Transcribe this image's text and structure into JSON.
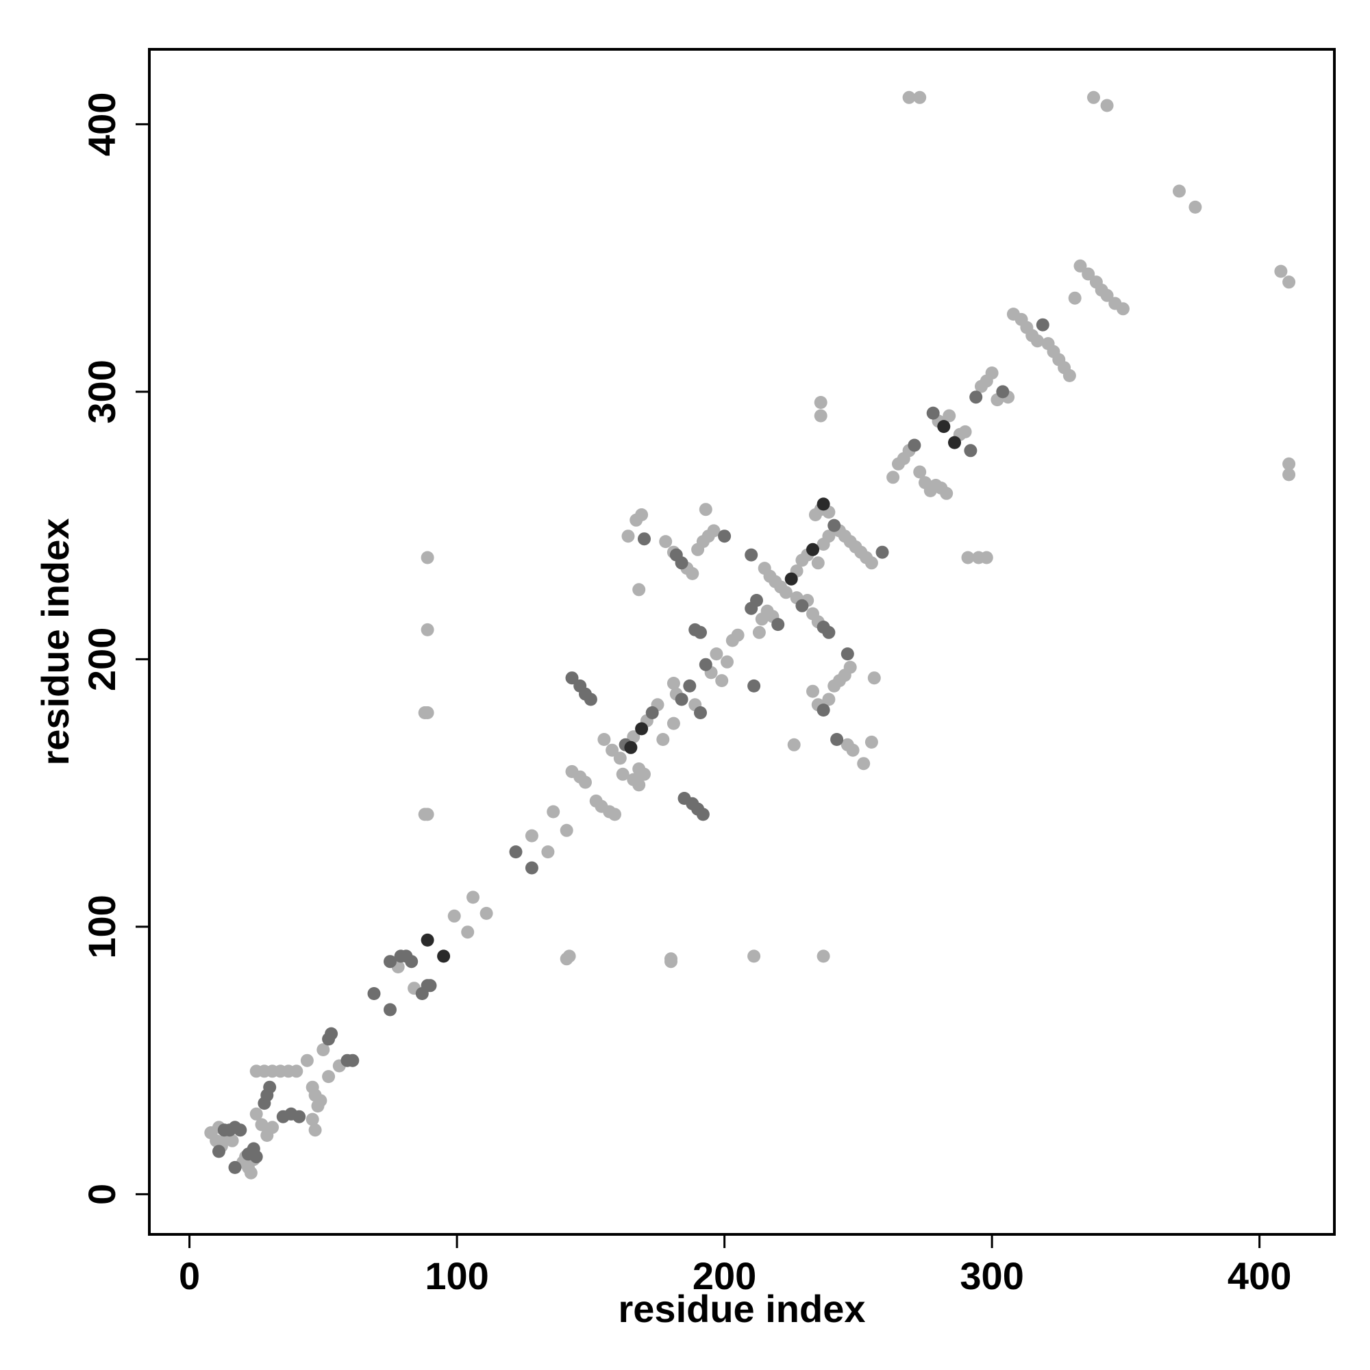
{
  "chart_data": {
    "type": "scatter",
    "title": "",
    "xlabel": "residue index",
    "ylabel": "residue index",
    "xlim": [
      -15,
      428
    ],
    "ylim": [
      -15,
      428
    ],
    "x_ticks": [
      0,
      100,
      200,
      300,
      400
    ],
    "y_ticks": [
      0,
      100,
      200,
      300,
      400
    ],
    "x_tick_labels": [
      "0",
      "100",
      "200",
      "300",
      "400"
    ],
    "y_tick_labels": [
      "0",
      "100",
      "200",
      "300",
      "400"
    ],
    "grid": false,
    "legend": "none",
    "colors": {
      "light": "#b0b0b0",
      "medium": "#6e6e6e",
      "dark": "#2a2a2a"
    },
    "points": [
      [
        8,
        23,
        "light"
      ],
      [
        10,
        20,
        "light"
      ],
      [
        12,
        18,
        "light"
      ],
      [
        11,
        25,
        "light"
      ],
      [
        14,
        22,
        "light"
      ],
      [
        16,
        20,
        "light"
      ],
      [
        13,
        24,
        "medium"
      ],
      [
        15,
        24,
        "medium"
      ],
      [
        17,
        25,
        "medium"
      ],
      [
        19,
        24,
        "medium"
      ],
      [
        11,
        16,
        "medium"
      ],
      [
        17,
        10,
        "medium"
      ],
      [
        20,
        12,
        "light"
      ],
      [
        21,
        14,
        "light"
      ],
      [
        22,
        10,
        "light"
      ],
      [
        23,
        8,
        "light"
      ],
      [
        24,
        13,
        "light"
      ],
      [
        22,
        15,
        "medium"
      ],
      [
        24,
        17,
        "medium"
      ],
      [
        25,
        14,
        "medium"
      ],
      [
        25,
        30,
        "light"
      ],
      [
        27,
        26,
        "light"
      ],
      [
        29,
        22,
        "light"
      ],
      [
        31,
        25,
        "light"
      ],
      [
        28,
        34,
        "medium"
      ],
      [
        29,
        37,
        "medium"
      ],
      [
        30,
        40,
        "medium"
      ],
      [
        25,
        46,
        "light"
      ],
      [
        28,
        46,
        "light"
      ],
      [
        31,
        46,
        "light"
      ],
      [
        34,
        46,
        "light"
      ],
      [
        37,
        46,
        "light"
      ],
      [
        40,
        46,
        "light"
      ],
      [
        35,
        29,
        "medium"
      ],
      [
        38,
        30,
        "medium"
      ],
      [
        41,
        29,
        "medium"
      ],
      [
        44,
        50,
        "light"
      ],
      [
        46,
        40,
        "light"
      ],
      [
        47,
        37,
        "light"
      ],
      [
        48,
        33,
        "light"
      ],
      [
        46,
        28,
        "light"
      ],
      [
        47,
        24,
        "light"
      ],
      [
        49,
        35,
        "light"
      ],
      [
        50,
        54,
        "light"
      ],
      [
        52,
        58,
        "medium"
      ],
      [
        53,
        60,
        "medium"
      ],
      [
        52,
        44,
        "light"
      ],
      [
        56,
        48,
        "light"
      ],
      [
        59,
        50,
        "medium"
      ],
      [
        61,
        50,
        "medium"
      ],
      [
        69,
        75,
        "medium"
      ],
      [
        75,
        69,
        "medium"
      ],
      [
        75,
        87,
        "medium"
      ],
      [
        78,
        85,
        "light"
      ],
      [
        79,
        89,
        "medium"
      ],
      [
        81,
        89,
        "medium"
      ],
      [
        83,
        87,
        "medium"
      ],
      [
        84,
        77,
        "light"
      ],
      [
        87,
        75,
        "medium"
      ],
      [
        89,
        78,
        "medium"
      ],
      [
        90,
        78,
        "medium"
      ],
      [
        89,
        95,
        "dark"
      ],
      [
        95,
        89,
        "dark"
      ],
      [
        99,
        104,
        "light"
      ],
      [
        104,
        98,
        "light"
      ],
      [
        106,
        111,
        "light"
      ],
      [
        111,
        105,
        "light"
      ],
      [
        122,
        128,
        "medium"
      ],
      [
        128,
        122,
        "medium"
      ],
      [
        128,
        134,
        "light"
      ],
      [
        134,
        128,
        "light"
      ],
      [
        136,
        143,
        "light"
      ],
      [
        141,
        136,
        "light"
      ],
      [
        141,
        88,
        "light"
      ],
      [
        142,
        89,
        "light"
      ],
      [
        180,
        88,
        "light"
      ],
      [
        180,
        87,
        "light"
      ],
      [
        211,
        89,
        "light"
      ],
      [
        237,
        89,
        "light"
      ],
      [
        88,
        142,
        "light"
      ],
      [
        89,
        142,
        "light"
      ],
      [
        88,
        180,
        "light"
      ],
      [
        89,
        180,
        "light"
      ],
      [
        89,
        211,
        "light"
      ],
      [
        89,
        238,
        "light"
      ],
      [
        143,
        158,
        "light"
      ],
      [
        146,
        156,
        "light"
      ],
      [
        148,
        154,
        "light"
      ],
      [
        152,
        147,
        "light"
      ],
      [
        154,
        145,
        "light"
      ],
      [
        157,
        143,
        "light"
      ],
      [
        159,
        142,
        "light"
      ],
      [
        143,
        193,
        "medium"
      ],
      [
        146,
        190,
        "medium"
      ],
      [
        148,
        187,
        "medium"
      ],
      [
        150,
        185,
        "medium"
      ],
      [
        155,
        170,
        "light"
      ],
      [
        158,
        166,
        "light"
      ],
      [
        161,
        163,
        "light"
      ],
      [
        165,
        167,
        "dark"
      ],
      [
        163,
        168,
        "medium"
      ],
      [
        166,
        171,
        "light"
      ],
      [
        169,
        174,
        "dark"
      ],
      [
        171,
        177,
        "light"
      ],
      [
        173,
        180,
        "medium"
      ],
      [
        175,
        183,
        "light"
      ],
      [
        177,
        170,
        "light"
      ],
      [
        181,
        176,
        "light"
      ],
      [
        168,
        159,
        "light"
      ],
      [
        170,
        157,
        "light"
      ],
      [
        168,
        153,
        "light"
      ],
      [
        166,
        155,
        "light"
      ],
      [
        162,
        157,
        "light"
      ],
      [
        164,
        246,
        "light"
      ],
      [
        167,
        252,
        "light"
      ],
      [
        169,
        254,
        "light"
      ],
      [
        170,
        245,
        "medium"
      ],
      [
        168,
        226,
        "light"
      ],
      [
        178,
        244,
        "light"
      ],
      [
        181,
        240,
        "light"
      ],
      [
        182,
        239,
        "medium"
      ],
      [
        184,
        236,
        "medium"
      ],
      [
        186,
        234,
        "light"
      ],
      [
        188,
        232,
        "light"
      ],
      [
        190,
        241,
        "light"
      ],
      [
        192,
        244,
        "light"
      ],
      [
        194,
        246,
        "light"
      ],
      [
        196,
        248,
        "light"
      ],
      [
        193,
        256,
        "light"
      ],
      [
        185,
        148,
        "medium"
      ],
      [
        188,
        146,
        "medium"
      ],
      [
        190,
        144,
        "medium"
      ],
      [
        192,
        142,
        "medium"
      ],
      [
        181,
        191,
        "light"
      ],
      [
        182,
        187,
        "light"
      ],
      [
        184,
        185,
        "medium"
      ],
      [
        187,
        190,
        "medium"
      ],
      [
        189,
        183,
        "light"
      ],
      [
        191,
        180,
        "medium"
      ],
      [
        193,
        198,
        "medium"
      ],
      [
        195,
        195,
        "light"
      ],
      [
        197,
        202,
        "light"
      ],
      [
        199,
        192,
        "light"
      ],
      [
        201,
        199,
        "light"
      ],
      [
        203,
        207,
        "light"
      ],
      [
        205,
        209,
        "light"
      ],
      [
        189,
        211,
        "medium"
      ],
      [
        191,
        210,
        "medium"
      ],
      [
        200,
        246,
        "medium"
      ],
      [
        210,
        239,
        "medium"
      ],
      [
        210,
        219,
        "medium"
      ],
      [
        212,
        222,
        "medium"
      ],
      [
        214,
        215,
        "light"
      ],
      [
        216,
        218,
        "light"
      ],
      [
        218,
        216,
        "light"
      ],
      [
        220,
        213,
        "medium"
      ],
      [
        211,
        190,
        "medium"
      ],
      [
        213,
        210,
        "light"
      ],
      [
        215,
        234,
        "light"
      ],
      [
        217,
        231,
        "light"
      ],
      [
        219,
        229,
        "light"
      ],
      [
        221,
        227,
        "light"
      ],
      [
        223,
        225,
        "light"
      ],
      [
        225,
        230,
        "dark"
      ],
      [
        227,
        223,
        "light"
      ],
      [
        229,
        237,
        "light"
      ],
      [
        231,
        239,
        "light"
      ],
      [
        233,
        241,
        "dark"
      ],
      [
        235,
        236,
        "light"
      ],
      [
        237,
        243,
        "light"
      ],
      [
        239,
        246,
        "light"
      ],
      [
        227,
        233,
        "light"
      ],
      [
        229,
        220,
        "medium"
      ],
      [
        231,
        222,
        "light"
      ],
      [
        233,
        217,
        "light"
      ],
      [
        235,
        214,
        "light"
      ],
      [
        237,
        212,
        "medium"
      ],
      [
        239,
        210,
        "medium"
      ],
      [
        234,
        254,
        "light"
      ],
      [
        236,
        256,
        "light"
      ],
      [
        237,
        258,
        "dark"
      ],
      [
        239,
        255,
        "light"
      ],
      [
        241,
        250,
        "medium"
      ],
      [
        243,
        248,
        "light"
      ],
      [
        245,
        246,
        "light"
      ],
      [
        247,
        244,
        "light"
      ],
      [
        249,
        242,
        "light"
      ],
      [
        251,
        240,
        "light"
      ],
      [
        253,
        238,
        "light"
      ],
      [
        255,
        236,
        "light"
      ],
      [
        236,
        291,
        "light"
      ],
      [
        236,
        296,
        "light"
      ],
      [
        233,
        188,
        "light"
      ],
      [
        235,
        183,
        "light"
      ],
      [
        237,
        181,
        "medium"
      ],
      [
        239,
        185,
        "light"
      ],
      [
        241,
        190,
        "light"
      ],
      [
        243,
        192,
        "light"
      ],
      [
        245,
        194,
        "light"
      ],
      [
        247,
        197,
        "light"
      ],
      [
        246,
        202,
        "medium"
      ],
      [
        242,
        170,
        "medium"
      ],
      [
        246,
        168,
        "light"
      ],
      [
        248,
        166,
        "light"
      ],
      [
        252,
        161,
        "light"
      ],
      [
        255,
        169,
        "light"
      ],
      [
        226,
        168,
        "light"
      ],
      [
        256,
        193,
        "light"
      ],
      [
        259,
        240,
        "medium"
      ],
      [
        263,
        268,
        "light"
      ],
      [
        265,
        273,
        "light"
      ],
      [
        267,
        275,
        "light"
      ],
      [
        269,
        278,
        "light"
      ],
      [
        271,
        280,
        "medium"
      ],
      [
        273,
        270,
        "light"
      ],
      [
        275,
        266,
        "light"
      ],
      [
        277,
        263,
        "light"
      ],
      [
        279,
        265,
        "light"
      ],
      [
        281,
        264,
        "light"
      ],
      [
        283,
        262,
        "light"
      ],
      [
        278,
        292,
        "medium"
      ],
      [
        280,
        289,
        "light"
      ],
      [
        282,
        287,
        "dark"
      ],
      [
        284,
        291,
        "light"
      ],
      [
        286,
        281,
        "dark"
      ],
      [
        288,
        284,
        "light"
      ],
      [
        290,
        285,
        "light"
      ],
      [
        292,
        278,
        "medium"
      ],
      [
        294,
        298,
        "medium"
      ],
      [
        296,
        302,
        "light"
      ],
      [
        298,
        304,
        "light"
      ],
      [
        300,
        307,
        "light"
      ],
      [
        302,
        297,
        "light"
      ],
      [
        304,
        300,
        "medium"
      ],
      [
        306,
        298,
        "light"
      ],
      [
        308,
        329,
        "light"
      ],
      [
        311,
        327,
        "light"
      ],
      [
        313,
        324,
        "light"
      ],
      [
        315,
        321,
        "light"
      ],
      [
        317,
        319,
        "light"
      ],
      [
        319,
        325,
        "medium"
      ],
      [
        321,
        318,
        "light"
      ],
      [
        323,
        315,
        "light"
      ],
      [
        325,
        312,
        "light"
      ],
      [
        327,
        309,
        "light"
      ],
      [
        329,
        306,
        "light"
      ],
      [
        331,
        335,
        "light"
      ],
      [
        333,
        347,
        "light"
      ],
      [
        336,
        344,
        "light"
      ],
      [
        339,
        341,
        "light"
      ],
      [
        341,
        338,
        "light"
      ],
      [
        343,
        336,
        "light"
      ],
      [
        346,
        333,
        "light"
      ],
      [
        349,
        331,
        "light"
      ],
      [
        291,
        238,
        "light"
      ],
      [
        295,
        238,
        "light"
      ],
      [
        298,
        238,
        "light"
      ],
      [
        269,
        410,
        "light"
      ],
      [
        273,
        410,
        "light"
      ],
      [
        338,
        410,
        "light"
      ],
      [
        343,
        407,
        "light"
      ],
      [
        370,
        375,
        "light"
      ],
      [
        376,
        369,
        "light"
      ],
      [
        408,
        345,
        "light"
      ],
      [
        411,
        341,
        "light"
      ],
      [
        411,
        273,
        "light"
      ],
      [
        411,
        269,
        "light"
      ]
    ]
  }
}
